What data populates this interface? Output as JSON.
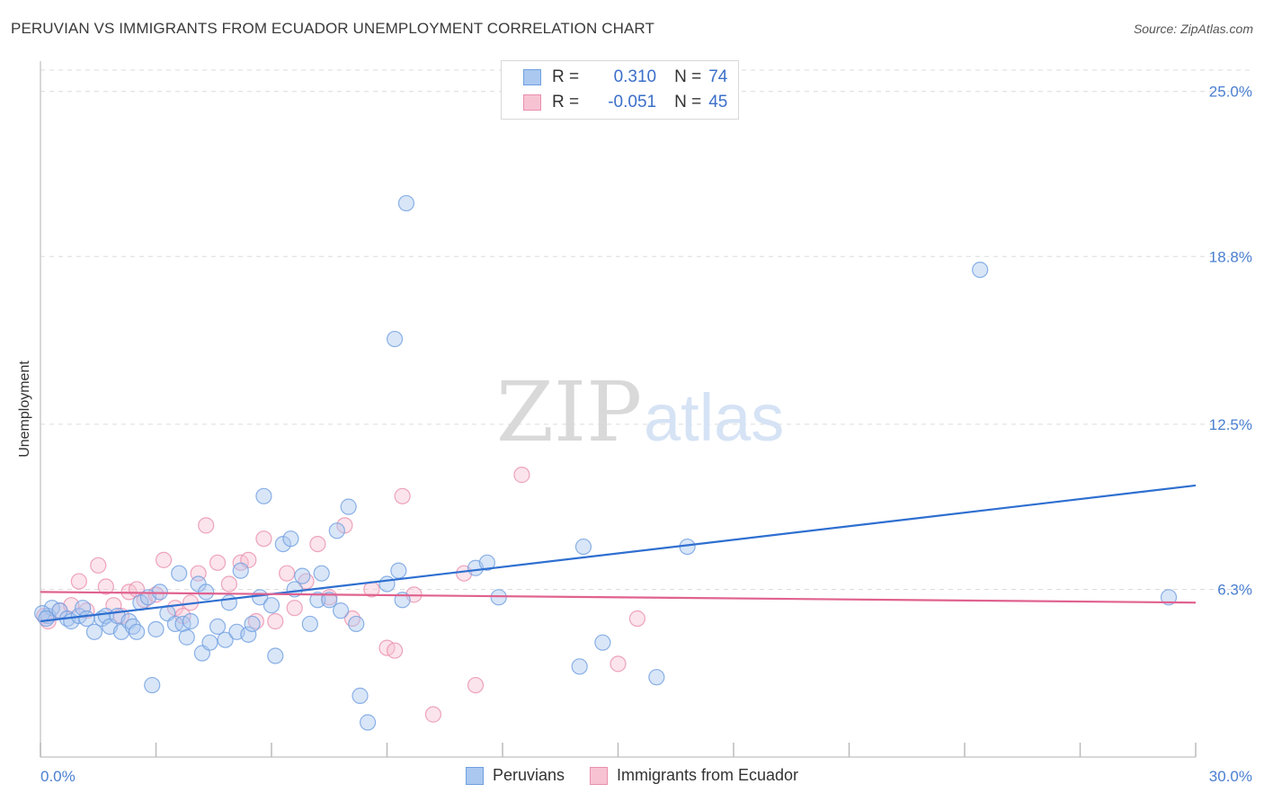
{
  "header": {
    "title": "PERUVIAN VS IMMIGRANTS FROM ECUADOR UNEMPLOYMENT CORRELATION CHART",
    "source": "Source: ZipAtlas.com"
  },
  "watermark": {
    "zip": "ZIP",
    "atlas": "atlas"
  },
  "stats_legend": [
    {
      "r_label": "R =",
      "r_value": "0.310",
      "n_label": "N =",
      "n_value": "74"
    },
    {
      "r_label": "R =",
      "r_value": "-0.051",
      "n_label": "N =",
      "n_value": "45"
    }
  ],
  "colors": {
    "peruvians_fill": "#aac8f0",
    "peruvians_stroke": "#6f9fe0",
    "peruvians_line": "#2e6fd0",
    "ecuador_fill": "#f7c3d3",
    "ecuador_stroke": "#ea8fae",
    "ecuador_line": "#e0628f",
    "tick_label": "#4a7fd0",
    "grid": "#dcdcdc"
  },
  "chart_data": {
    "type": "scatter",
    "title": "PERUVIAN VS IMMIGRANTS FROM ECUADOR UNEMPLOYMENT CORRELATION CHART",
    "xlabel": "",
    "ylabel": "Unemployment",
    "xlim": [
      0,
      30
    ],
    "ylim": [
      0,
      25.8
    ],
    "x_tick_labels": [
      "0.0%",
      "30.0%"
    ],
    "y_ticks": [
      6.3,
      12.5,
      18.8,
      25.0
    ],
    "y_tick_labels": [
      "6.3%",
      "12.5%",
      "18.8%",
      "25.0%"
    ],
    "grid": "horizontal dashed",
    "legend_position": "bottom",
    "series": [
      {
        "name": "Peruvians",
        "trend": {
          "x": [
            0,
            30
          ],
          "y": [
            5.1,
            10.2
          ]
        },
        "points": [
          [
            0.2,
            5.3
          ],
          [
            0.3,
            5.6
          ],
          [
            0.5,
            5.5
          ],
          [
            0.7,
            5.2
          ],
          [
            0.8,
            5.1
          ],
          [
            1.0,
            5.3
          ],
          [
            1.1,
            5.6
          ],
          [
            1.2,
            5.2
          ],
          [
            1.4,
            4.7
          ],
          [
            1.6,
            5.2
          ],
          [
            1.7,
            5.3
          ],
          [
            1.8,
            4.9
          ],
          [
            2.0,
            5.3
          ],
          [
            2.1,
            4.7
          ],
          [
            2.3,
            5.1
          ],
          [
            2.4,
            4.9
          ],
          [
            2.5,
            4.7
          ],
          [
            2.6,
            5.8
          ],
          [
            2.8,
            6.0
          ],
          [
            3.0,
            4.8
          ],
          [
            3.1,
            6.2
          ],
          [
            3.3,
            5.4
          ],
          [
            3.5,
            5.0
          ],
          [
            3.6,
            6.9
          ],
          [
            3.7,
            5.0
          ],
          [
            3.8,
            4.5
          ],
          [
            3.9,
            5.1
          ],
          [
            4.1,
            6.5
          ],
          [
            4.2,
            3.9
          ],
          [
            4.3,
            6.2
          ],
          [
            4.4,
            4.3
          ],
          [
            4.6,
            4.9
          ],
          [
            4.8,
            4.4
          ],
          [
            4.9,
            5.8
          ],
          [
            5.1,
            4.7
          ],
          [
            5.2,
            7.0
          ],
          [
            5.4,
            4.6
          ],
          [
            5.5,
            5.0
          ],
          [
            5.7,
            6.0
          ],
          [
            5.8,
            9.8
          ],
          [
            6.0,
            5.7
          ],
          [
            6.1,
            3.8
          ],
          [
            6.3,
            8.0
          ],
          [
            6.5,
            8.2
          ],
          [
            6.6,
            6.3
          ],
          [
            6.8,
            6.8
          ],
          [
            7.0,
            5.0
          ],
          [
            7.2,
            5.9
          ],
          [
            7.3,
            6.9
          ],
          [
            7.5,
            5.9
          ],
          [
            7.7,
            8.5
          ],
          [
            7.8,
            5.5
          ],
          [
            8.0,
            9.4
          ],
          [
            8.2,
            5.0
          ],
          [
            8.3,
            2.3
          ],
          [
            8.5,
            1.3
          ],
          [
            9.0,
            6.5
          ],
          [
            9.2,
            15.7
          ],
          [
            9.3,
            7.0
          ],
          [
            9.4,
            5.9
          ],
          [
            9.5,
            20.8
          ],
          [
            11.3,
            7.1
          ],
          [
            11.6,
            7.3
          ],
          [
            11.9,
            6.0
          ],
          [
            14.0,
            3.4
          ],
          [
            14.1,
            7.9
          ],
          [
            14.6,
            4.3
          ],
          [
            16.0,
            3.0
          ],
          [
            16.8,
            7.9
          ],
          [
            24.4,
            18.3
          ],
          [
            29.3,
            6.0
          ],
          [
            0.05,
            5.4
          ],
          [
            0.15,
            5.2
          ],
          [
            2.9,
            2.7
          ]
        ]
      },
      {
        "name": "Immigrants from Ecuador",
        "trend": {
          "x": [
            0,
            30
          ],
          "y": [
            6.2,
            5.8
          ]
        },
        "points": [
          [
            0.1,
            5.3
          ],
          [
            0.2,
            5.1
          ],
          [
            0.5,
            5.5
          ],
          [
            0.8,
            5.7
          ],
          [
            1.0,
            6.6
          ],
          [
            1.2,
            5.5
          ],
          [
            1.5,
            7.2
          ],
          [
            1.7,
            6.4
          ],
          [
            1.9,
            5.7
          ],
          [
            2.1,
            5.3
          ],
          [
            2.3,
            6.2
          ],
          [
            2.5,
            6.3
          ],
          [
            2.7,
            5.9
          ],
          [
            3.0,
            6.1
          ],
          [
            3.2,
            7.4
          ],
          [
            3.5,
            5.6
          ],
          [
            3.7,
            5.3
          ],
          [
            3.9,
            5.8
          ],
          [
            4.1,
            6.9
          ],
          [
            4.3,
            8.7
          ],
          [
            4.6,
            7.3
          ],
          [
            4.9,
            6.5
          ],
          [
            5.2,
            7.3
          ],
          [
            5.4,
            7.4
          ],
          [
            5.6,
            5.1
          ],
          [
            5.8,
            8.2
          ],
          [
            6.1,
            5.1
          ],
          [
            6.4,
            6.9
          ],
          [
            6.6,
            5.6
          ],
          [
            6.9,
            6.6
          ],
          [
            7.2,
            8.0
          ],
          [
            7.5,
            6.0
          ],
          [
            7.9,
            8.7
          ],
          [
            8.1,
            5.2
          ],
          [
            8.6,
            6.3
          ],
          [
            9.0,
            4.1
          ],
          [
            9.2,
            4.0
          ],
          [
            9.4,
            9.8
          ],
          [
            9.7,
            6.1
          ],
          [
            10.2,
            1.6
          ],
          [
            11.0,
            6.9
          ],
          [
            11.3,
            2.7
          ],
          [
            12.5,
            10.6
          ],
          [
            15.0,
            3.5
          ],
          [
            15.5,
            5.2
          ]
        ]
      }
    ]
  },
  "bottom_legend": [
    "Peruvians",
    "Immigrants from Ecuador"
  ]
}
